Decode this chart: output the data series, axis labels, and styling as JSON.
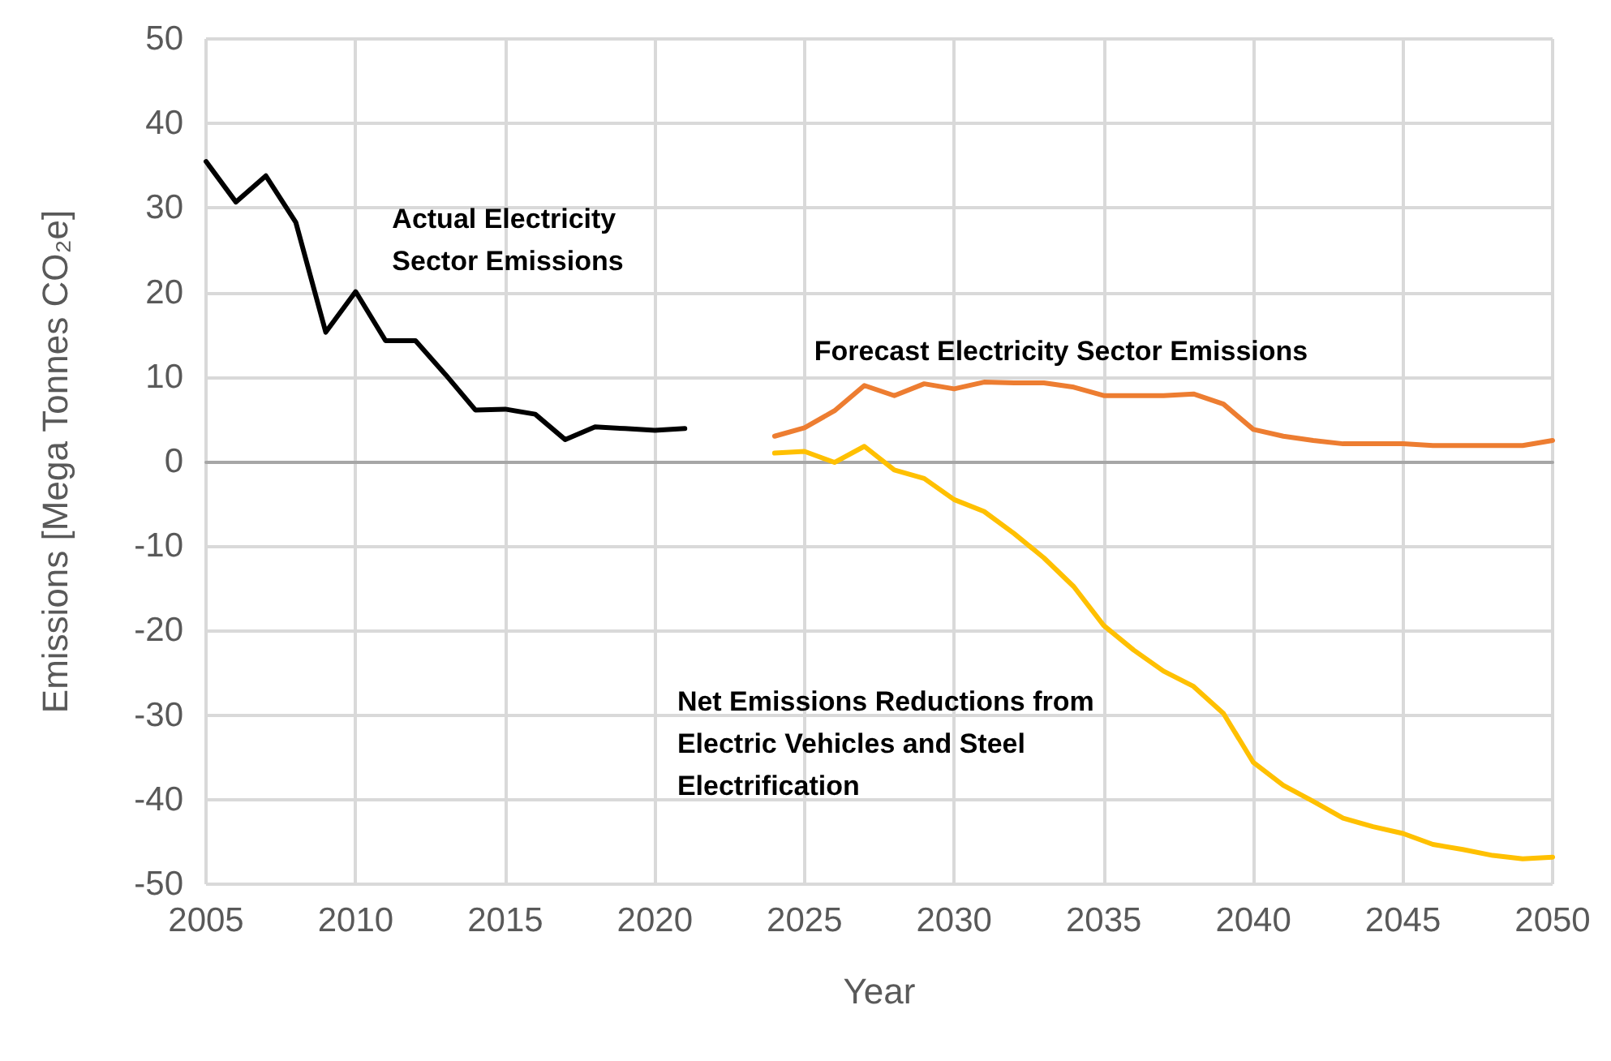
{
  "chart_data": {
    "type": "line",
    "xlabel": "Year",
    "ylabel": "Emissions [Mega Tonnes CO₂e]",
    "xlim": [
      2005,
      2050
    ],
    "xticks": [
      2005,
      2010,
      2015,
      2020,
      2025,
      2030,
      2035,
      2040,
      2045,
      2050
    ],
    "ylim": [
      -50,
      50
    ],
    "yticks": [
      -50,
      -40,
      -30,
      -20,
      -10,
      0,
      10,
      20,
      30,
      40,
      50
    ],
    "grid": true,
    "legend": false,
    "marker": "none",
    "line_style": "solid",
    "series": [
      {
        "name": "Actual Electricity\nSector Emissions",
        "color": "#000000",
        "x": [
          2005,
          2006,
          2007,
          2008,
          2009,
          2010,
          2011,
          2012,
          2013,
          2014,
          2015,
          2016,
          2017,
          2018,
          2019,
          2020,
          2021
        ],
        "values": [
          35.5,
          30.7,
          33.8,
          28.3,
          15.3,
          20.1,
          14.3,
          14.3,
          10.3,
          6.1,
          6.2,
          5.6,
          2.6,
          4.1,
          3.9,
          3.7,
          3.9
        ]
      },
      {
        "name": "Forecast Electricity Sector Emissions",
        "color": "#ed7d31",
        "x": [
          2024,
          2025,
          2026,
          2027,
          2028,
          2029,
          2030,
          2031,
          2032,
          2033,
          2034,
          2035,
          2036,
          2037,
          2038,
          2039,
          2040,
          2041,
          2042,
          2043,
          2044,
          2045,
          2046,
          2047,
          2048,
          2049,
          2050
        ],
        "values": [
          3.0,
          4.0,
          6.0,
          9.0,
          7.8,
          9.2,
          8.6,
          9.4,
          9.3,
          9.3,
          8.8,
          7.8,
          7.8,
          7.8,
          8.0,
          6.8,
          3.8,
          3.0,
          2.5,
          2.1,
          2.1,
          2.1,
          1.9,
          1.9,
          1.9,
          1.9,
          2.5
        ]
      },
      {
        "name": "Net Emissions Reductions from\nElectric Vehicles and Steel\nElectrification",
        "color": "#ffc000",
        "x": [
          2024,
          2025,
          2026,
          2027,
          2028,
          2029,
          2030,
          2031,
          2032,
          2033,
          2034,
          2035,
          2036,
          2037,
          2038,
          2039,
          2040,
          2041,
          2042,
          2043,
          2044,
          2045,
          2046,
          2047,
          2048,
          2049,
          2050
        ],
        "values": [
          1.0,
          1.2,
          -0.1,
          1.8,
          -1.0,
          -2.0,
          -4.5,
          -5.9,
          -8.5,
          -11.4,
          -14.8,
          -19.4,
          -22.3,
          -24.8,
          -26.6,
          -29.8,
          -35.6,
          -38.3,
          -40.2,
          -42.2,
          -43.2,
          -44.0,
          -45.3,
          -45.9,
          -46.6,
          -47.0,
          -46.8
        ]
      }
    ]
  }
}
